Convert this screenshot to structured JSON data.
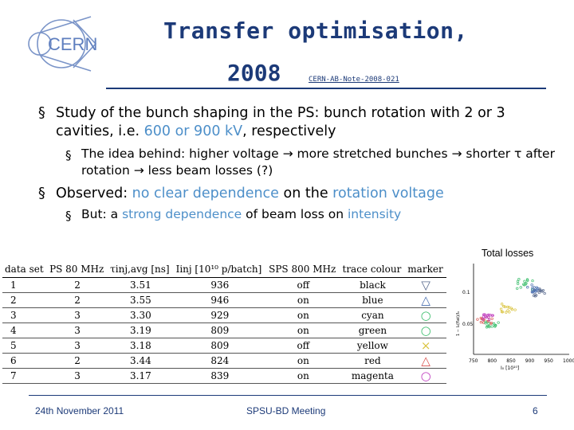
{
  "header": {
    "title_line1": "Transfer optimisation,",
    "title_line2": "2008",
    "note_ref": "CERN-AB-Note-2008-021",
    "logo_text": "CERN"
  },
  "bullets": {
    "b1": {
      "a": "Study of the bunch shaping in the PS: bunch rotation with 2 or 3 cavities, i.e. ",
      "hl1": "600 or 900 kV",
      "b": ", respectively"
    },
    "b1_sub": "The idea behind: higher voltage → more stretched bunches → shorter τ after rotation → less beam losses (?)",
    "b2": {
      "a": "Observed: ",
      "hl1": "no clear dependence",
      "b": " on the ",
      "hl2": "rotation voltage"
    },
    "b2_sub": {
      "a": "But: a ",
      "hl1": "strong dependence",
      "b": " of beam loss on ",
      "hl2": "intensity"
    }
  },
  "table": {
    "headers": [
      "data set",
      "PS 80 MHz",
      "τinj,avg [ns]",
      "Iinj [10¹⁰ p/batch]",
      "SPS 800 MHz",
      "trace colour",
      "marker"
    ],
    "rows": [
      {
        "set": "1",
        "ps": "2",
        "tau": "3.51",
        "iinj": "936",
        "sps": "off",
        "colour": "black",
        "marker": "▽",
        "mcolor": "#5b6c8f"
      },
      {
        "set": "2",
        "ps": "2",
        "tau": "3.55",
        "iinj": "946",
        "sps": "on",
        "colour": "blue",
        "marker": "△",
        "mcolor": "#4a6fb0"
      },
      {
        "set": "3",
        "ps": "3",
        "tau": "3.30",
        "iinj": "929",
        "sps": "on",
        "colour": "cyan",
        "marker": "○",
        "mcolor": "#3fbf6f"
      },
      {
        "set": "4",
        "ps": "3",
        "tau": "3.19",
        "iinj": "809",
        "sps": "on",
        "colour": "green",
        "marker": "○",
        "mcolor": "#3fbf6f"
      },
      {
        "set": "5",
        "ps": "3",
        "tau": "3.18",
        "iinj": "809",
        "sps": "off",
        "colour": "yellow",
        "marker": "×",
        "mcolor": "#d9c23a"
      },
      {
        "set": "6",
        "ps": "2",
        "tau": "3.44",
        "iinj": "824",
        "sps": "on",
        "colour": "red",
        "marker": "△",
        "mcolor": "#d9534f"
      },
      {
        "set": "7",
        "ps": "3",
        "tau": "3.17",
        "iinj": "839",
        "sps": "on",
        "colour": "magenta",
        "marker": "○",
        "mcolor": "#c040c0"
      }
    ]
  },
  "plot": {
    "label": "Total losses",
    "y_ticks": [
      "0.1",
      "0.05"
    ],
    "x_ticks": [
      "750",
      "800",
      "850",
      "900",
      "950",
      "1000"
    ],
    "xlabel": "I₀ [10¹⁰]",
    "ylabel": "1 − I₀(flat)/I₀"
  },
  "footer": {
    "date": "24th November 2011",
    "meeting": "SPSU-BD Meeting",
    "page": "6"
  },
  "colors": {
    "title": "#1c3a78",
    "highlight": "#4d8fc9"
  }
}
